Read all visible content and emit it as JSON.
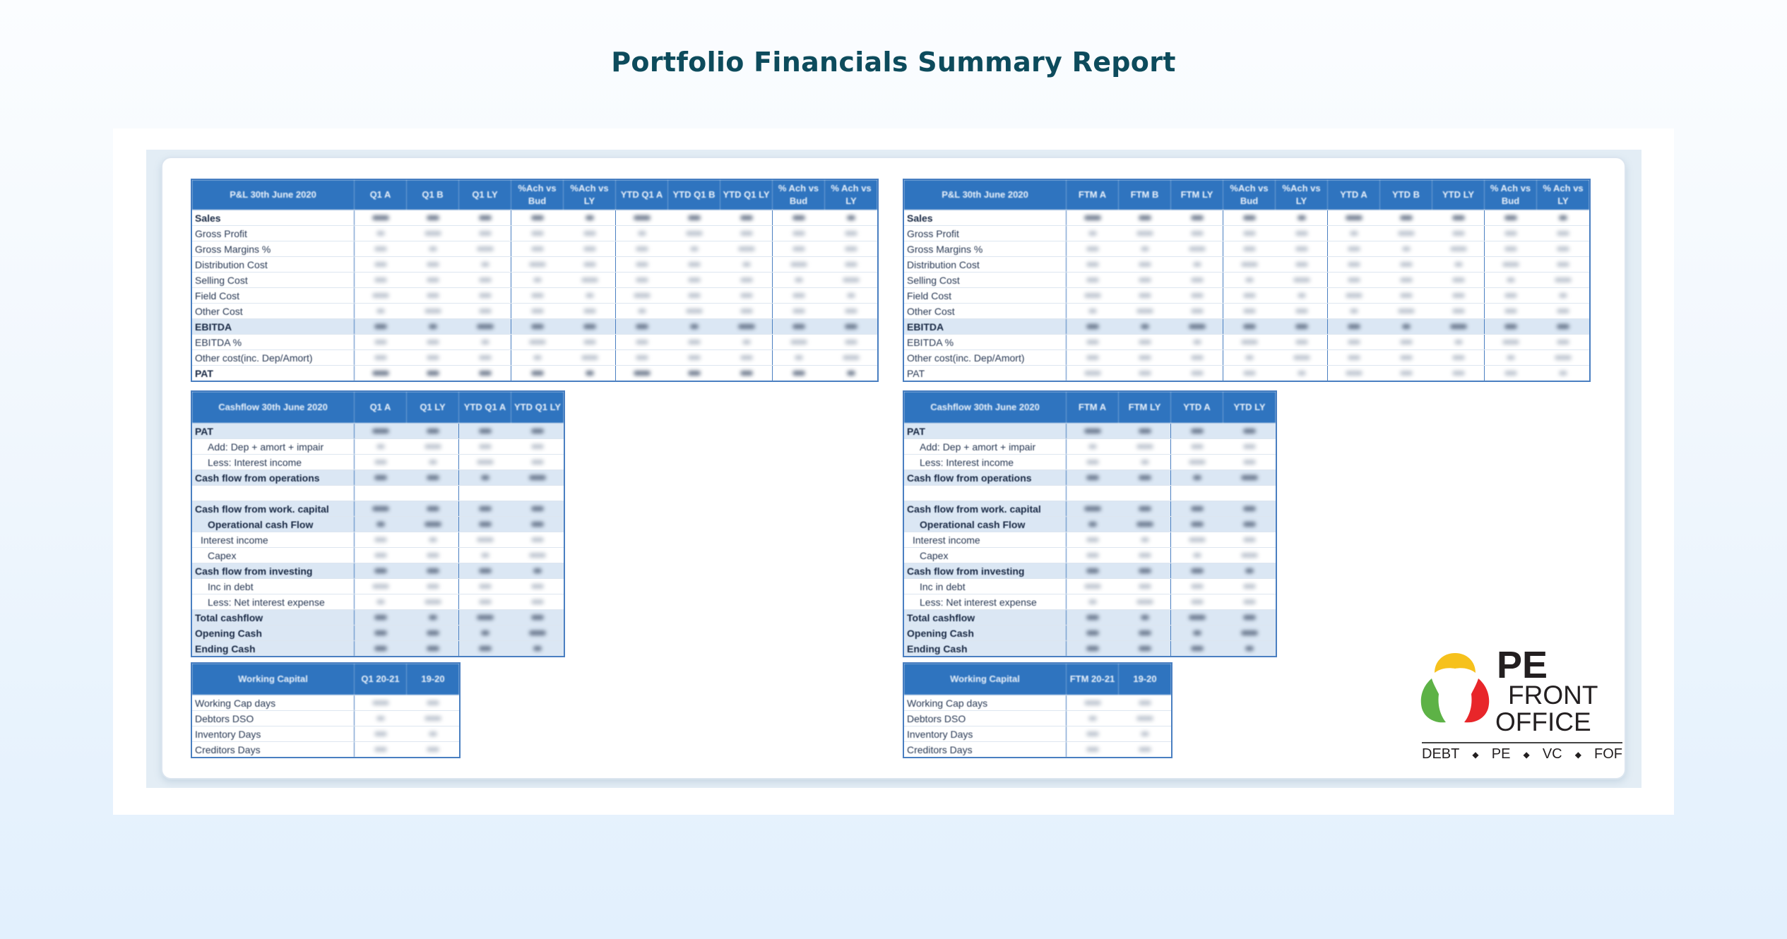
{
  "page_title": "Portfolio Financials Summary Report",
  "pl_left": {
    "headers": [
      "P&L 30th June 2020",
      "Q1 A",
      "Q1 B",
      "Q1 LY",
      "%Ach vs Bud",
      "%Ach vs LY",
      "YTD Q1 A",
      "YTD Q1 B",
      "YTD Q1 LY",
      "% Ach vs Bud",
      "% Ach vs LY"
    ],
    "rows": [
      "Sales",
      "Gross Profit",
      "Gross Margins %",
      "Distribution Cost",
      "Selling Cost",
      "Field Cost",
      "Other Cost",
      "EBITDA",
      "EBITDA %",
      "Other cost(inc. Dep/Amort)",
      "PAT"
    ]
  },
  "pl_right": {
    "headers": [
      "P&L 30th June 2020",
      "FTM A",
      "FTM B",
      "FTM LY",
      "%Ach vs Bud",
      "%Ach vs LY",
      "YTD A",
      "YTD B",
      "YTD LY",
      "% Ach vs Bud",
      "% Ach vs LY"
    ],
    "rows": [
      "Sales",
      "Gross Profit",
      "Gross Margins %",
      "Distribution Cost",
      "Selling Cost",
      "Field Cost",
      "Other Cost",
      "EBITDA",
      "EBITDA %",
      "Other cost(inc. Dep/Amort)",
      "PAT"
    ]
  },
  "cf_left": {
    "headers": [
      "Cashflow 30th June 2020",
      "Q1 A",
      "Q1 LY",
      "YTD Q1 A",
      "YTD Q1 LY"
    ],
    "rows": [
      "PAT",
      "Add: Dep + amort + impair",
      "Less: Interest income",
      "Cash flow from operations",
      "",
      "Cash flow from work. capital",
      "Operational cash Flow",
      "Interest income",
      "Capex",
      "Cash flow from investing",
      "Inc in debt",
      "Less: Net interest expense",
      "Total cashflow",
      "Opening Cash",
      "Ending Cash"
    ]
  },
  "cf_right": {
    "headers": [
      "Cashflow 30th June 2020",
      "FTM A",
      "FTM LY",
      "YTD A",
      "YTD LY"
    ],
    "rows": [
      "PAT",
      "Add: Dep + amort + impair",
      "Less: Interest income",
      "Cash flow from operations",
      "",
      "Cash flow from work. capital",
      "Operational cash Flow",
      "Interest income",
      "Capex",
      "Cash flow from investing",
      "Inc in debt",
      "Less: Net interest expense",
      "Total cashflow",
      "Opening Cash",
      "Ending Cash"
    ]
  },
  "wc_left": {
    "headers": [
      "Working Capital",
      "Q1 20-21",
      "19-20"
    ],
    "rows": [
      "Working Cap days",
      "Debtors DSO",
      "Inventory Days",
      "Creditors Days"
    ]
  },
  "wc_right": {
    "headers": [
      "Working Capital",
      "FTM 20-21",
      "19-20"
    ],
    "rows": [
      "Working Cap days",
      "Debtors DSO",
      "Inventory Days",
      "Creditors Days"
    ]
  },
  "logo": {
    "word1": "PE",
    "word2": "FRONT",
    "word3": "OFFICE",
    "tagline": [
      "DEBT",
      "PE",
      "VC",
      "FOF"
    ],
    "colors": {
      "yellow": "#f6c11c",
      "green": "#5db246",
      "red": "#e8262a"
    }
  },
  "colors": {
    "title": "#0d4b5c",
    "header_blue": "#2f74bf",
    "row_shade": "#dbe7f4"
  }
}
